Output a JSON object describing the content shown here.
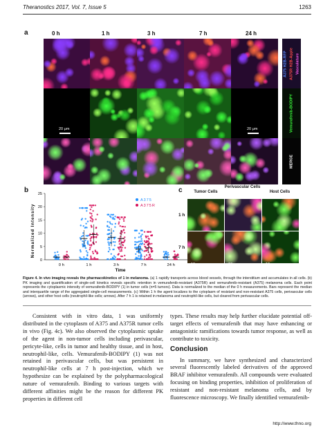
{
  "header": {
    "journal": "Theranostics 2017, Vol. 7, Issue 5",
    "page": "1263"
  },
  "figure": {
    "panel_a": {
      "label": "a",
      "timepoints": [
        "0 h",
        "1 h",
        "3 h",
        "7 h",
        "24 h"
      ],
      "row_labels": [
        "A375 H2B-RFP",
        "A375R H2B-Apple",
        "Vasculature",
        "Vemurafenib-BODIPY",
        "MERGE"
      ],
      "scale_left": "20 μm",
      "scale_right": "20 μm"
    },
    "panel_b": {
      "label": "b",
      "legend": [
        "A375",
        "A375R"
      ],
      "legend_colors": [
        "#1f8fff",
        "#d6105a"
      ]
    },
    "panel_c": {
      "label": "c",
      "col_headers": [
        "Tumor Cells",
        "Perivascular Cells",
        "Host Cells"
      ],
      "row_labels": [
        "1 h",
        "7 h"
      ],
      "scales": [
        "10 μm",
        "10 μm",
        "10 μm"
      ]
    }
  },
  "chart_data": {
    "type": "scatter",
    "xlabel": "Time",
    "ylabel": "Normalized Intensity",
    "categories": [
      "0 h",
      "1 h",
      "3 h",
      "7 h",
      "24 h"
    ],
    "ylim": [
      0,
      25
    ],
    "yticks": [
      0,
      5,
      10,
      15,
      20,
      25
    ],
    "series": [
      {
        "name": "A375",
        "color": "#1f8fff",
        "median": [
          1.0,
          8.0,
          8.5,
          4.0,
          1.0
        ],
        "max": [
          3.5,
          19.5,
          17.0,
          11.0,
          3.0
        ]
      },
      {
        "name": "A375R",
        "color": "#d6105a",
        "median": [
          1.0,
          9.5,
          8.0,
          4.5,
          1.0
        ],
        "max": [
          3.0,
          20.5,
          16.0,
          10.5,
          3.2
        ]
      }
    ]
  },
  "caption": {
    "title": "Figure 4. In vivo imaging reveals the pharmacokinetics of 1 in melanoma.",
    "text": "(a) 1 rapidly transports across blood vessels, through the interstitium and accumulates in all cells. (b) PK imaging and quantification of single-cell kinetics reveals specific retention in vemurafenib-resistant (A375R) and vemurafenib-resistant (A375) melanoma cells. Each point represents the cytoplasmic intensity of vemurafenib-BODIPY (1) in tumor cells (n=5 tumors). Data is normalized to the median of the 0 h measurements. Bars represent the median and interquartile range of the aggregated single-cell measurements. (c) Within 1 h the agent localizes to the cytoplasm of resistant and non-resistant A375 cells, perivascular cells (arrows), and other host cells (neutrophil-like cells; arrows). After 7 h 1 is retained in melanoma and neutrophil-like cells, but cleared from perivascular cells."
  },
  "body": {
    "left_para": "Consistent with in vitro data, 1 was uniformly distributed in the cytoplasm of A375 and A375R tumor cells in vivo (Fig. 4c). We also observed the cytoplasmic uptake of the agent in non-tumor cells including perivascular, pericyte-like, cells in tumor and healthy tissue, and in host, neutrophil-like, cells. Vemurafenib-BODIPY (1) was not retained in perivascular cells, but was persistent in neutrophil-like cells at 7 h post-injection, which we hypothesize can be explained by the polypharmacological nature of vemurafenib. Binding to various targets with different affinities might be the reason for different PK properties in different cell",
    "right_para1": "types. These results may help further elucidate potential off-target effects of vemurafenib that may have enhancing or antagonistic ramifications towards tumor response, as well as contribute to toxicity.",
    "section": "Conclusion",
    "right_para2": "In summary, we have synthesized and characterized several fluorescently labeled derivatives of the approved BRAF inhibitor vemurafenib. All compounds were evaluated focusing on binding properties, inhibition of proliferation of resistant and non-resistant melanoma cells, and by fluorescence microscopy. We finally identified vemurafenib-"
  },
  "footer": {
    "url": "http://www.thno.org"
  }
}
